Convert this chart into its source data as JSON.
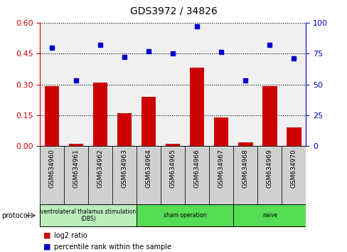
{
  "title": "GDS3972 / 34826",
  "samples": [
    "GSM634960",
    "GSM634961",
    "GSM634962",
    "GSM634963",
    "GSM634964",
    "GSM634965",
    "GSM634966",
    "GSM634967",
    "GSM634968",
    "GSM634969",
    "GSM634970"
  ],
  "log2_ratio": [
    0.29,
    0.01,
    0.31,
    0.16,
    0.24,
    0.01,
    0.38,
    0.14,
    0.02,
    0.29,
    0.09
  ],
  "percentile_rank": [
    80,
    53,
    82,
    72,
    77,
    75,
    97,
    76,
    53,
    82,
    71
  ],
  "bar_color": "#cc0000",
  "dot_color": "#0000cc",
  "ylim_left": [
    0,
    0.6
  ],
  "ylim_right": [
    0,
    100
  ],
  "yticks_left": [
    0,
    0.15,
    0.3,
    0.45,
    0.6
  ],
  "yticks_right": [
    0,
    25,
    50,
    75,
    100
  ],
  "protocol_groups": [
    {
      "label": "ventrolateral thalamus stimulation\n(DBS)",
      "start": 0,
      "end": 3,
      "color": "#bbeebb"
    },
    {
      "label": "sham operation",
      "start": 4,
      "end": 7,
      "color": "#55dd55"
    },
    {
      "label": "naive",
      "start": 8,
      "end": 10,
      "color": "#55dd55"
    }
  ],
  "legend_bar_label": "log2 ratio",
  "legend_dot_label": "percentile rank within the sample",
  "protocol_label": "protocol",
  "plot_bg_color": "#f0f0f0",
  "sample_box_color": "#d0d0d0"
}
